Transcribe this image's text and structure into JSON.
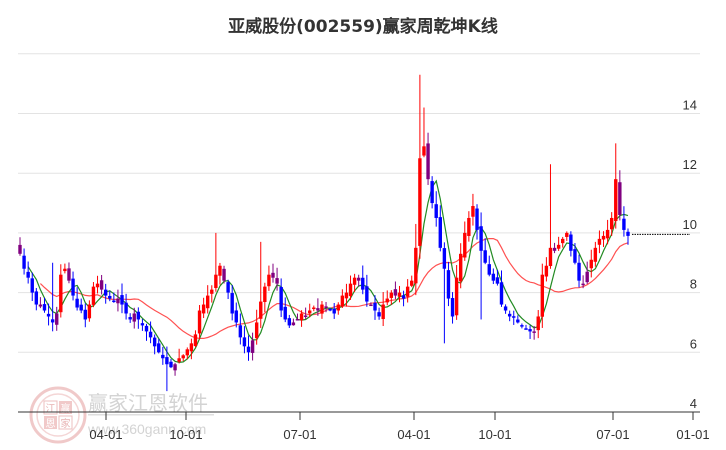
{
  "title": "亚威股份(002559)赢家周乾坤K线",
  "watermark": {
    "brand": "赢家江恩软件",
    "url": "www.360gann.com",
    "seal_chars": [
      "江",
      "赢",
      "恩",
      "家"
    ]
  },
  "colors": {
    "up": "#ff0000",
    "down": "#0000ff",
    "neutral": "#800080",
    "ma_short": "#228b22",
    "ma_long": "#ff3333",
    "grid": "#e3e3e3",
    "axis": "#333333"
  },
  "chart_data": {
    "type": "candlestick",
    "title": "亚威股份(002559)赢家周乾坤K线",
    "xlabel": "",
    "ylabel": "",
    "ylim": [
      4,
      16
    ],
    "y_ticks": [
      4,
      6,
      8,
      10,
      12,
      14
    ],
    "x_ticks": [
      {
        "label": "04-01",
        "x": 106
      },
      {
        "label": "10-01",
        "x": 186
      },
      {
        "label": "07-01",
        "x": 300
      },
      {
        "label": "04-01",
        "x": 414
      },
      {
        "label": "10-01",
        "x": 495
      },
      {
        "label": "07-01",
        "x": 613
      },
      {
        "label": "01-01",
        "x": 693
      }
    ],
    "last_price_line": 9.95,
    "series": [
      {
        "name": "weekly_close_approx",
        "values": [
          9.3,
          8.8,
          8.5,
          8.0,
          7.6,
          7.6,
          7.4,
          7.2,
          7.0,
          7.3,
          8.6,
          8.8,
          8.4,
          7.9,
          7.5,
          7.4,
          7.1,
          7.6,
          8.2,
          8.3,
          8.1,
          7.9,
          7.8,
          7.7,
          7.8,
          7.6,
          7.3,
          7.1,
          7.3,
          7.1,
          6.9,
          6.7,
          6.5,
          6.2,
          6.0,
          5.8,
          5.6,
          5.5,
          5.6,
          5.8,
          5.9,
          6.1,
          6.3,
          6.6,
          7.4,
          7.6,
          7.9,
          8.1,
          8.6,
          8.9,
          8.4,
          8.0,
          7.3,
          7.0,
          6.5,
          6.2,
          6.0,
          6.4,
          7.0,
          7.7,
          8.2,
          8.6,
          8.5,
          8.3,
          7.4,
          7.1,
          6.9,
          7.0,
          7.1,
          7.3,
          7.2,
          7.4,
          7.5,
          7.4,
          7.6,
          7.5,
          7.4,
          7.3,
          7.6,
          7.9,
          8.0,
          8.3,
          8.5,
          8.4,
          8.1,
          7.7,
          7.6,
          7.4,
          7.2,
          7.6,
          7.8,
          8.0,
          7.9,
          8.0,
          7.8,
          8.2,
          8.4,
          9.5,
          12.5,
          12.9,
          11.8,
          11.0,
          10.5,
          9.5,
          8.8,
          7.8,
          7.2,
          8.5,
          9.3,
          10.0,
          10.5,
          10.9,
          10.1,
          9.4,
          9.0,
          8.6,
          8.4,
          8.3,
          7.6,
          7.4,
          7.2,
          7.2,
          7.0,
          6.9,
          6.8,
          6.7,
          6.7,
          7.2,
          8.6,
          8.9,
          9.5,
          9.4,
          9.6,
          9.8,
          10.0,
          9.4,
          9.0,
          8.4,
          8.3,
          8.7,
          9.1,
          9.5,
          9.8,
          9.9,
          10.1,
          10.5,
          11.8,
          10.6,
          10.1,
          9.9
        ]
      }
    ],
    "ma_short_desc": "green short moving average",
    "ma_long_desc": "red long moving average"
  }
}
